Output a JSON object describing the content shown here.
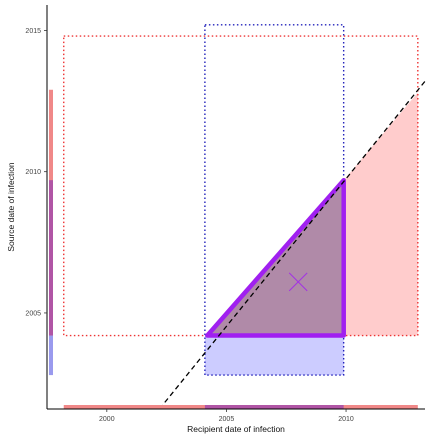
{
  "chart_data": {
    "type": "scatter",
    "xlabel": "Recipient date of infection",
    "ylabel": "Source date of infection",
    "xlim": [
      1997.5,
      2013.3
    ],
    "ylim": [
      2001.6,
      2015.9
    ],
    "x_ticks": [
      "2000",
      "2005",
      "2010"
    ],
    "y_ticks": [
      "2005",
      "2010",
      "2015"
    ],
    "x_tick_values": [
      2000,
      2005,
      2010
    ],
    "y_tick_values": [
      2005,
      2010,
      2015
    ],
    "grid": false,
    "colors": {
      "source_range": "#ee3333",
      "source_fill": "#ffcccc",
      "recipient_range": "#2222bb",
      "recipient_fill": "#ccccff",
      "overlap_fill": "#b08aa8",
      "overlap_border": "#a020f0",
      "diagonal": "#000000"
    },
    "source_window": {
      "x": [
        1998.2,
        2013.0
      ],
      "y": [
        2004.2,
        2014.8
      ]
    },
    "recipient_window": {
      "x": [
        2004.1,
        2009.9
      ],
      "y": [
        2002.8,
        2015.2
      ]
    },
    "pink_region": [
      [
        2009.9,
        2009.7
      ],
      [
        2013.0,
        2012.8
      ],
      [
        2013.0,
        2004.2
      ],
      [
        2009.9,
        2004.2
      ]
    ],
    "blue_region": [
      [
        2004.1,
        2004.2
      ],
      [
        2009.9,
        2004.2
      ],
      [
        2009.9,
        2002.8
      ],
      [
        2004.1,
        2002.8
      ]
    ],
    "overlap_region": [
      [
        2004.2,
        2004.2
      ],
      [
        2009.9,
        2009.7
      ],
      [
        2009.9,
        2004.2
      ]
    ],
    "diagonal_line": [
      [
        2002.2,
        2001.6
      ],
      [
        2013.3,
        2013.2
      ]
    ],
    "centroid_marker": {
      "x": 2008.0,
      "y": 2006.1
    },
    "x_rug": [
      {
        "from": 1998.2,
        "to": 2013.0,
        "color": "#f08888"
      },
      {
        "from": 2004.1,
        "to": 2009.9,
        "color": "#b055a5"
      }
    ],
    "y_rug": [
      {
        "from": 2004.2,
        "to": 2012.9,
        "color": "#f08888"
      },
      {
        "from": 2002.8,
        "to": 2004.2,
        "color": "#9a9aee"
      },
      {
        "from": 2004.2,
        "to": 2009.7,
        "color": "#b055a5"
      }
    ]
  }
}
